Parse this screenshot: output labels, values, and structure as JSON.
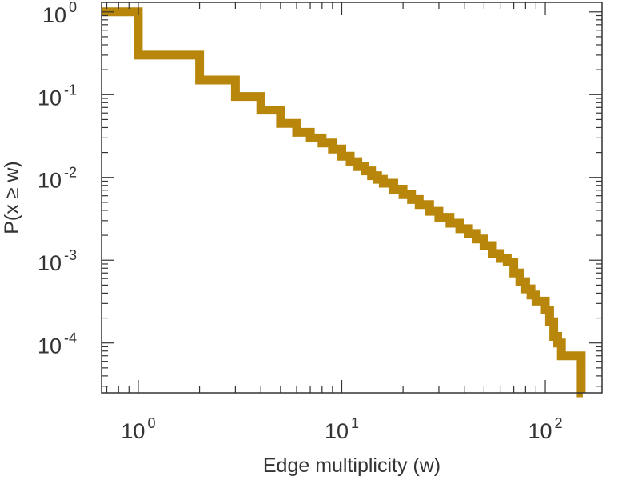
{
  "chart_data": {
    "type": "line",
    "subtype": "step-ccdf",
    "title": "",
    "xlabel": "Edge multiplicity (w)",
    "ylabel": "P(x ≥ w)",
    "xscale": "log",
    "yscale": "log",
    "xlim": [
      0.66,
      190
    ],
    "ylim": [
      2.5e-05,
      1.3
    ],
    "grid": false,
    "color": "#B8860B",
    "xticks": [
      {
        "base": "10",
        "exp": "0",
        "value": 1
      },
      {
        "base": "10",
        "exp": "1",
        "value": 10
      },
      {
        "base": "10",
        "exp": "2",
        "value": 100
      }
    ],
    "yticks": [
      {
        "base": "10",
        "exp": "0",
        "value": 1
      },
      {
        "base": "10",
        "exp": "-1",
        "value": 0.1
      },
      {
        "base": "10",
        "exp": "-2",
        "value": 0.01
      },
      {
        "base": "10",
        "exp": "-3",
        "value": 0.001
      },
      {
        "base": "10",
        "exp": "-4",
        "value": 0.0001
      }
    ],
    "series": [
      {
        "name": "P(x ≥ w)",
        "x": [
          0.66,
          1,
          2,
          3,
          4,
          5,
          6,
          7,
          8,
          9,
          10,
          11,
          12,
          13,
          14,
          15,
          16,
          18,
          20,
          22,
          24,
          27,
          30,
          34,
          38,
          42,
          46,
          50,
          55,
          60,
          65,
          70,
          75,
          80,
          85,
          90,
          100,
          105,
          110,
          115,
          120,
          150
        ],
        "y": [
          1.0,
          0.3,
          0.15,
          0.095,
          0.065,
          0.045,
          0.035,
          0.03,
          0.026,
          0.022,
          0.018,
          0.0155,
          0.0135,
          0.012,
          0.0105,
          0.0095,
          0.0085,
          0.0072,
          0.0062,
          0.0054,
          0.0047,
          0.0039,
          0.0033,
          0.0028,
          0.0024,
          0.0021,
          0.0018,
          0.0015,
          0.0012,
          0.00105,
          0.00095,
          0.0007,
          0.00055,
          0.00045,
          0.00038,
          0.00032,
          0.00025,
          0.00018,
          0.00012,
          0.0001,
          7e-05,
          2.5e-05
        ]
      }
    ]
  }
}
